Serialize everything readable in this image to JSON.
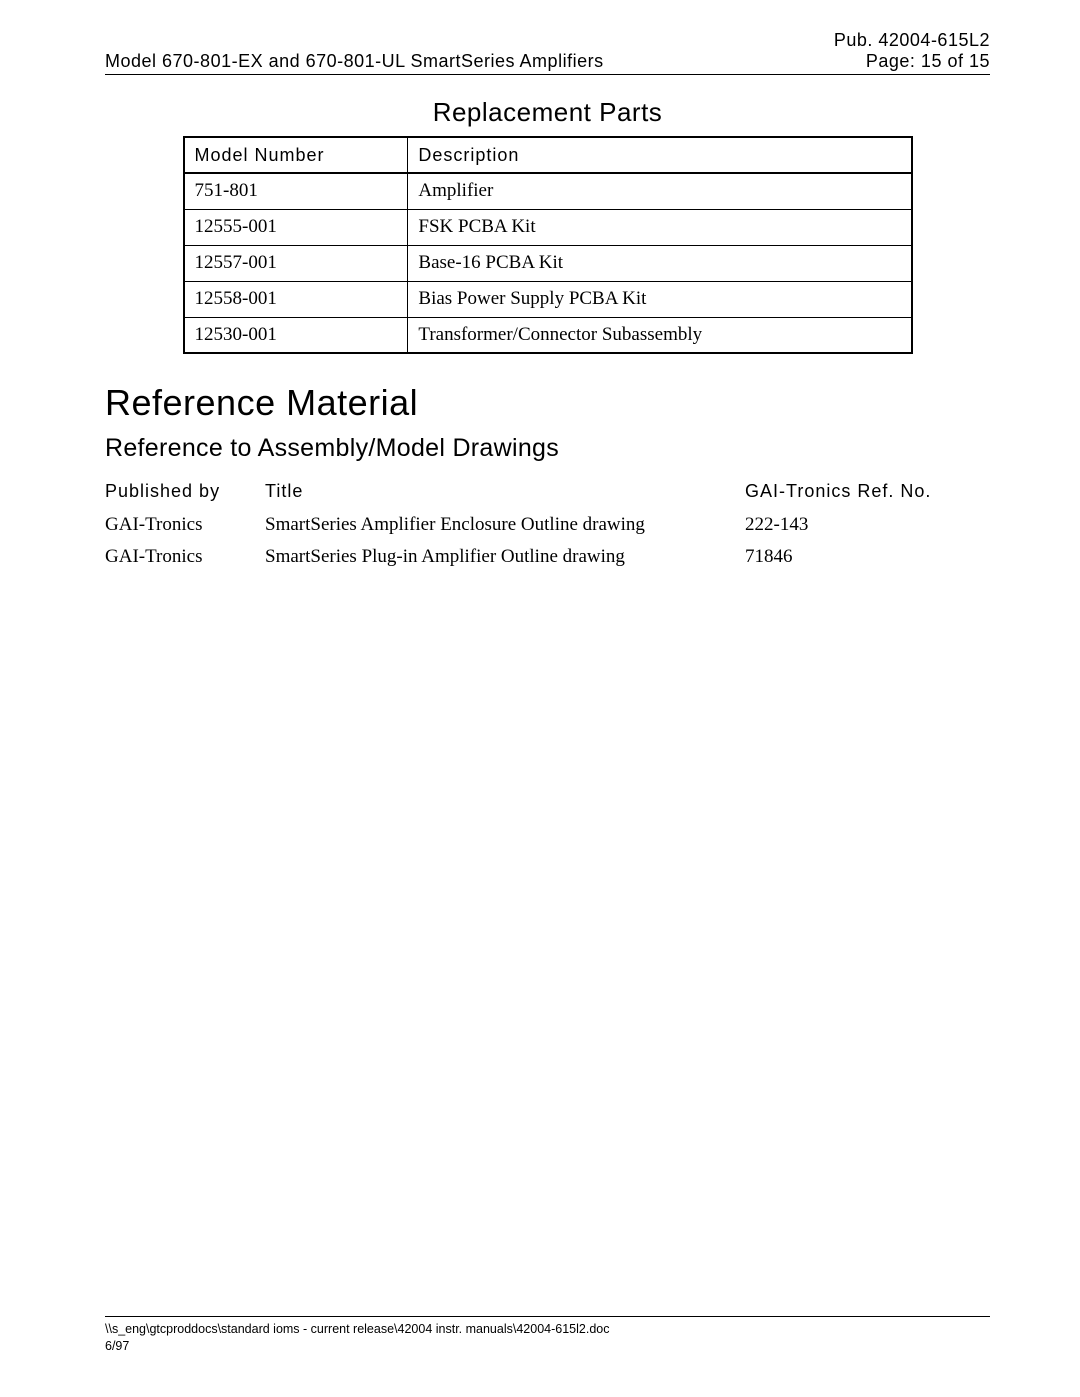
{
  "header": {
    "pub_label": "Pub.  42004-615L2",
    "doc_title": "Model 670-801-EX and 670-801-UL SmartSeries Amplifiers",
    "page_label": "Page: 15 of 15"
  },
  "replacement_parts": {
    "title": "Replacement Parts",
    "columns": [
      "Model Number",
      "Description"
    ],
    "rows": [
      [
        "751-801",
        "Amplifier"
      ],
      [
        "12555-001",
        "FSK PCBA Kit"
      ],
      [
        "12557-001",
        "Base-16 PCBA Kit"
      ],
      [
        "12558-001",
        "Bias Power Supply PCBA Kit"
      ],
      [
        "12530-001",
        "Transformer/Connector Subassembly"
      ]
    ]
  },
  "reference_material": {
    "heading": "Reference Material",
    "subheading": "Reference to Assembly/Model Drawings",
    "columns": [
      "Published by",
      "Title",
      "GAI-Tronics Ref. No."
    ],
    "rows": [
      [
        "GAI-Tronics",
        "SmartSeries Amplifier Enclosure Outline drawing",
        "222-143"
      ],
      [
        "GAI-Tronics",
        "SmartSeries Plug-in Amplifier Outline drawing",
        "71846"
      ]
    ]
  },
  "footer": {
    "path": "\\\\s_eng\\gtcproddocs\\standard ioms - current release\\42004 instr. manuals\\42004-615l2.doc",
    "date": "6/97"
  }
}
